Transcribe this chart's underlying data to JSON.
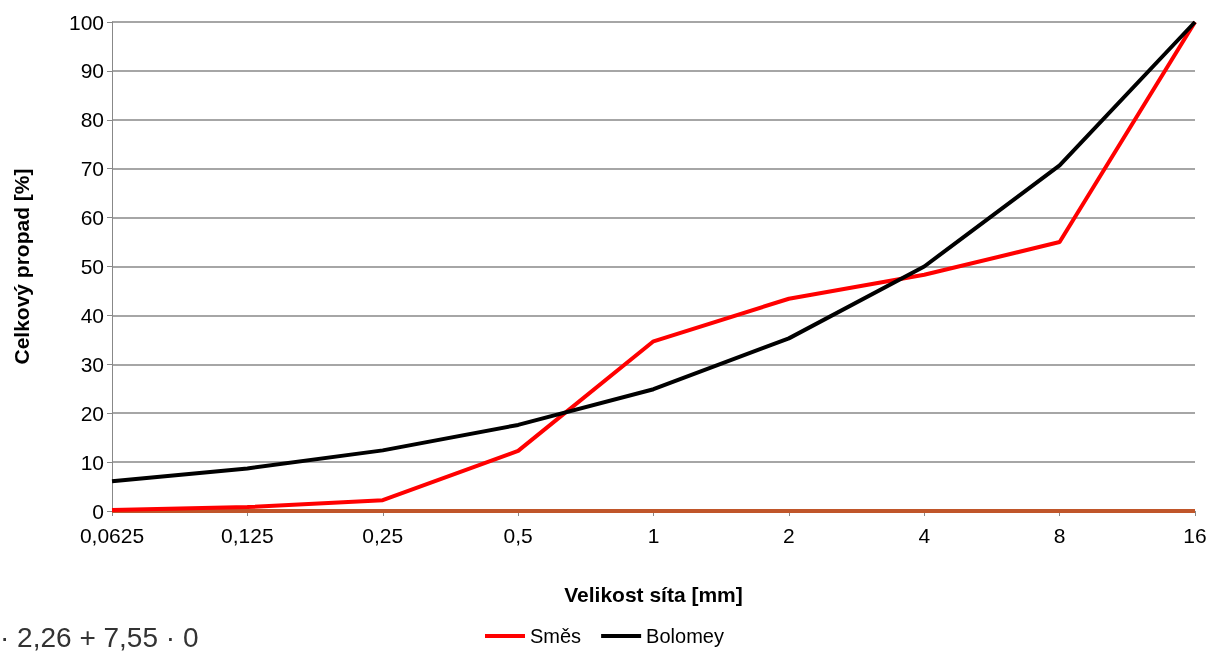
{
  "chart_data": {
    "type": "line",
    "xlabel": "Velikost síta [mm]",
    "ylabel": "Celkový propad [%]",
    "categories": [
      "0,0625",
      "0,125",
      "0,25",
      "0,5",
      "1",
      "2",
      "4",
      "8",
      "16"
    ],
    "series": [
      {
        "name": "Směs",
        "color": "#ff0000",
        "values": [
          0.2,
          0.8,
          2.2,
          12.3,
          34.7,
          43.4,
          48.3,
          55,
          100
        ]
      },
      {
        "name": "Bolomey",
        "color": "#000000",
        "values": [
          6.1,
          8.7,
          12.4,
          17.6,
          24.9,
          35.3,
          50,
          70.7,
          100
        ]
      },
      {
        "color": "#c0562a",
        "values": [
          0,
          0,
          0,
          0,
          0,
          0,
          0,
          0,
          0
        ]
      }
    ],
    "ylim": [
      0,
      100
    ],
    "yticks": [
      0,
      10,
      20,
      30,
      40,
      50,
      60,
      70,
      80,
      90,
      100
    ],
    "grid": "y",
    "legend": "bottom",
    "marker": "none",
    "line_style": "solid",
    "annotations": [
      "· 2,26 + 7,55 · 0"
    ]
  }
}
